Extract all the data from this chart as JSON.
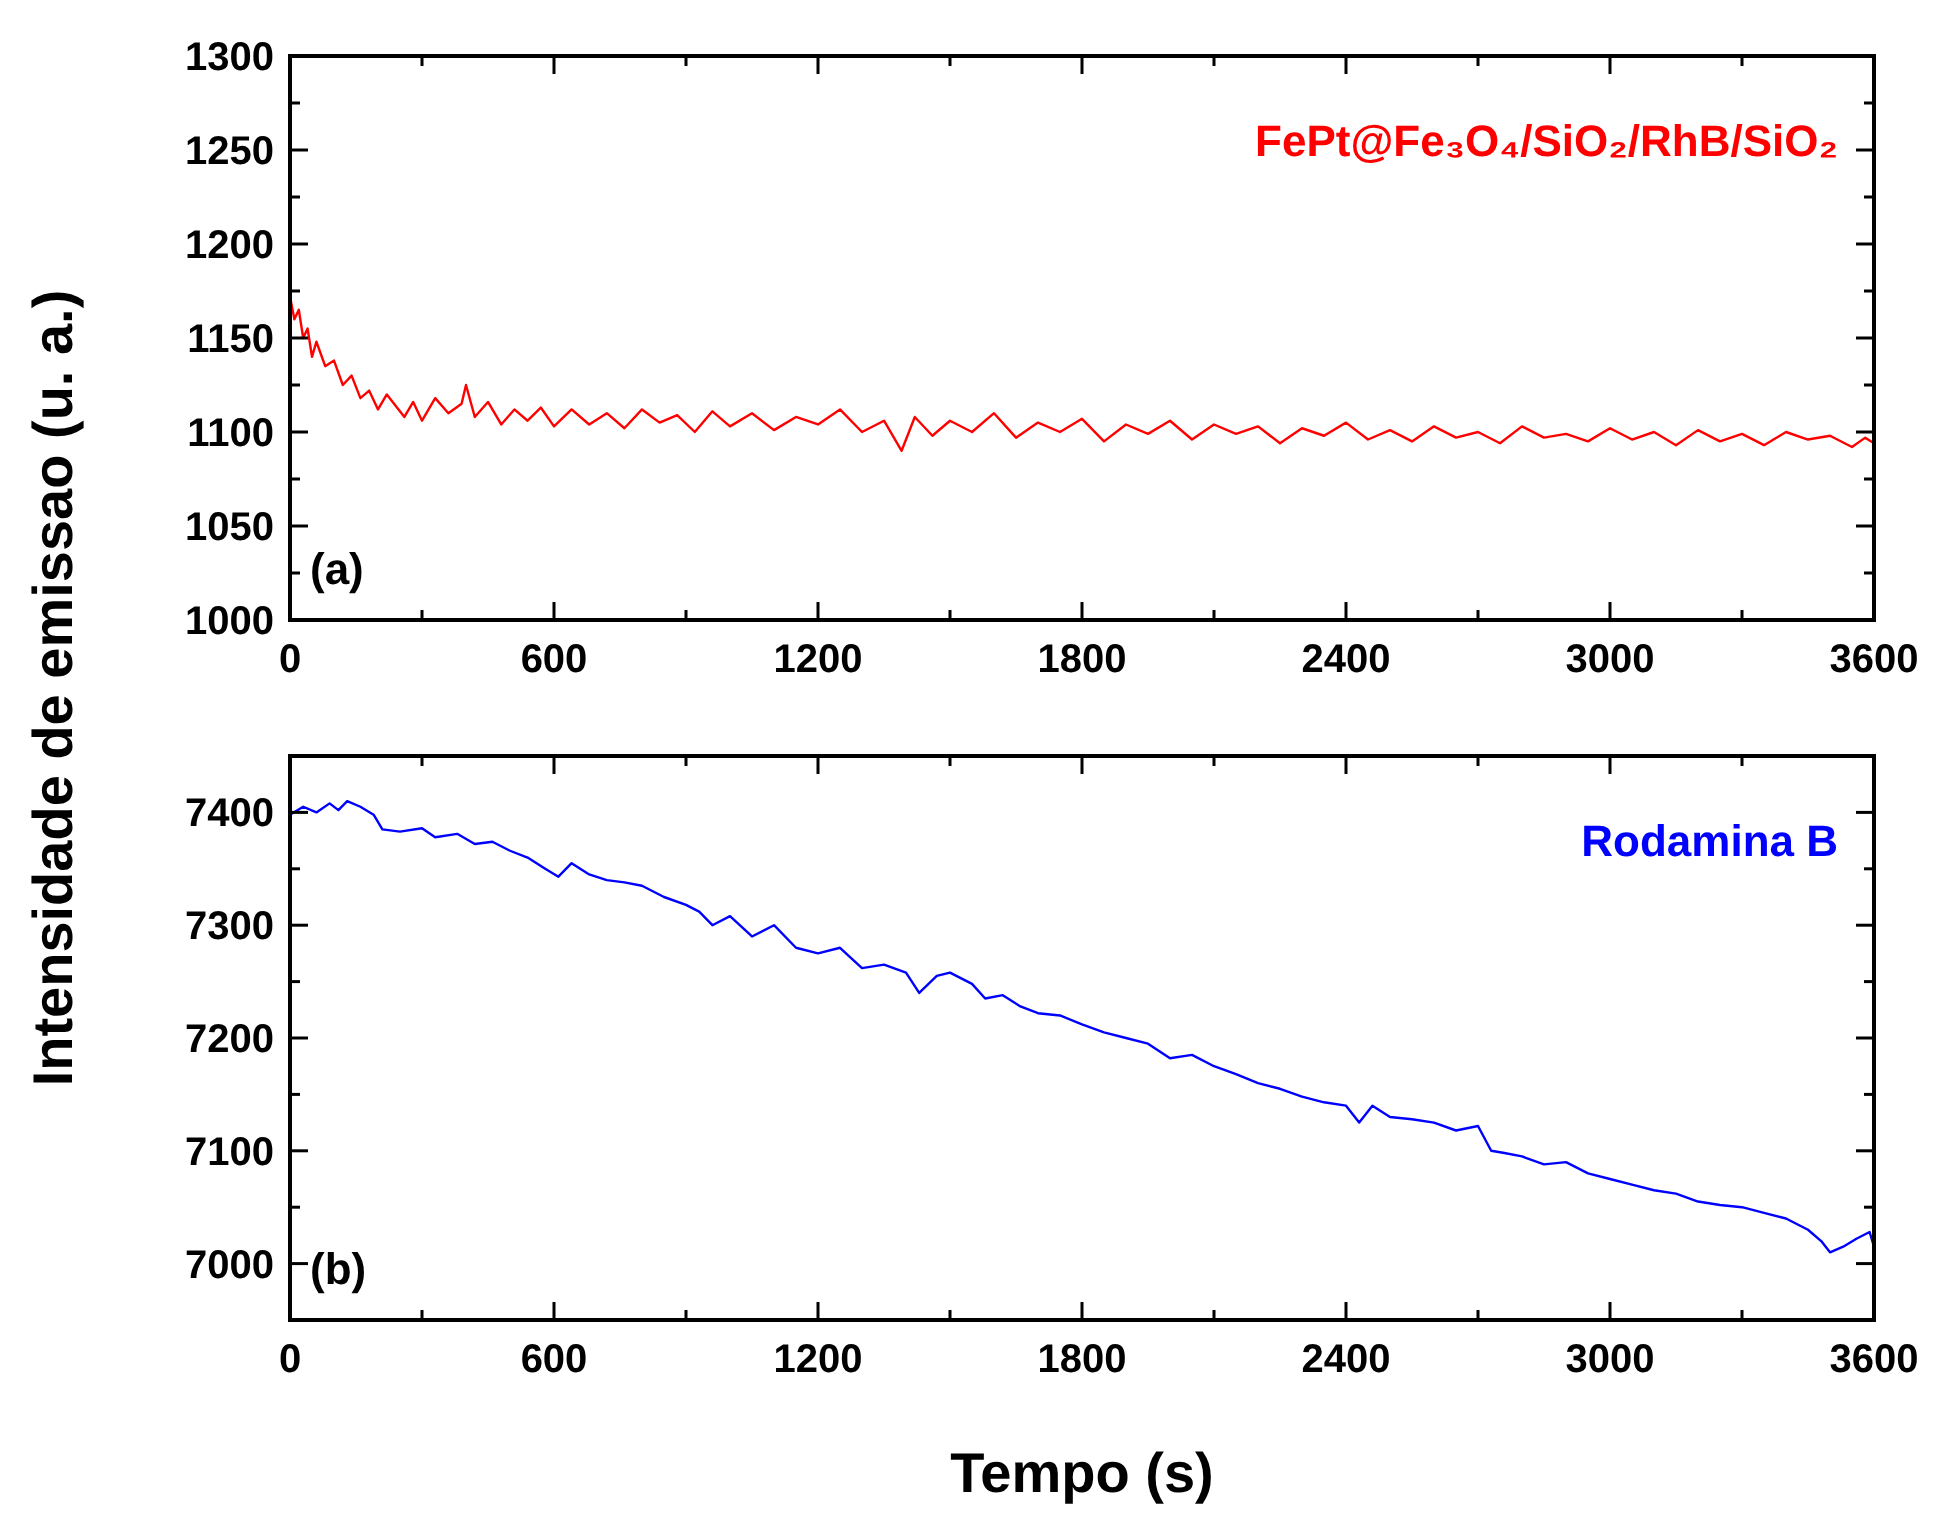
{
  "chart_data": [
    {
      "type": "line",
      "ylabel": "Intensidade de emissao (u. a.)",
      "annotations": [
        "(a)"
      ],
      "legend": "top right",
      "xlim": [
        0,
        3600
      ],
      "ylim": [
        1000,
        1300
      ],
      "xticks": [
        0,
        {
          "value": 300,
          "label": null
        },
        600,
        {
          "value": 900,
          "label": null
        },
        1200,
        {
          "value": 1500,
          "label": null
        },
        1800,
        {
          "value": 2100,
          "label": null
        },
        2400,
        {
          "value": 2700,
          "label": null
        },
        3000,
        {
          "value": 3300,
          "label": null
        },
        3600
      ],
      "yticks": [
        1000,
        {
          "value": 1025,
          "label": null
        },
        1050,
        {
          "value": 1075,
          "label": null
        },
        1100,
        {
          "value": 1125,
          "label": null
        },
        1150,
        {
          "value": 1175,
          "label": null
        },
        1200,
        {
          "value": 1225,
          "label": null
        },
        1250,
        {
          "value": 1275,
          "label": null
        },
        1300
      ],
      "series": [
        {
          "name": "FePt@Fe₃O₄/SiO₂/RhB/SiO₂",
          "color": "#ff0000",
          "x": [
            0,
            10,
            20,
            30,
            40,
            50,
            60,
            80,
            100,
            120,
            140,
            160,
            180,
            200,
            220,
            240,
            260,
            280,
            300,
            330,
            360,
            390,
            400,
            420,
            450,
            480,
            510,
            540,
            570,
            600,
            640,
            680,
            720,
            760,
            800,
            840,
            880,
            920,
            960,
            1000,
            1050,
            1100,
            1150,
            1200,
            1250,
            1300,
            1350,
            1390,
            1420,
            1460,
            1500,
            1550,
            1600,
            1650,
            1700,
            1750,
            1800,
            1850,
            1900,
            1950,
            2000,
            2050,
            2100,
            2150,
            2200,
            2250,
            2300,
            2350,
            2400,
            2450,
            2500,
            2550,
            2600,
            2650,
            2700,
            2750,
            2800,
            2850,
            2900,
            2950,
            3000,
            3050,
            3100,
            3150,
            3200,
            3250,
            3300,
            3350,
            3400,
            3450,
            3500,
            3550,
            3580,
            3600
          ],
          "values": [
            1172,
            1160,
            1165,
            1150,
            1155,
            1140,
            1148,
            1135,
            1138,
            1125,
            1130,
            1118,
            1122,
            1112,
            1120,
            1114,
            1108,
            1116,
            1106,
            1118,
            1110,
            1115,
            1125,
            1108,
            1116,
            1104,
            1112,
            1106,
            1113,
            1103,
            1112,
            1104,
            1110,
            1102,
            1112,
            1105,
            1109,
            1100,
            1111,
            1103,
            1110,
            1101,
            1108,
            1104,
            1112,
            1100,
            1106,
            1090,
            1108,
            1098,
            1106,
            1100,
            1110,
            1097,
            1105,
            1100,
            1107,
            1095,
            1104,
            1099,
            1106,
            1096,
            1104,
            1099,
            1103,
            1094,
            1102,
            1098,
            1105,
            1096,
            1101,
            1095,
            1103,
            1097,
            1100,
            1094,
            1103,
            1097,
            1099,
            1095,
            1102,
            1096,
            1100,
            1093,
            1101,
            1095,
            1099,
            1093,
            1100,
            1096,
            1098,
            1092,
            1097,
            1094
          ]
        }
      ]
    },
    {
      "type": "line",
      "xlabel": "Tempo (s)",
      "annotations": [
        "(b)"
      ],
      "legend": "top right",
      "xlim": [
        0,
        3600
      ],
      "ylim": [
        6950,
        7450
      ],
      "xticks": [
        0,
        {
          "value": 300,
          "label": null
        },
        600,
        {
          "value": 900,
          "label": null
        },
        1200,
        {
          "value": 1500,
          "label": null
        },
        1800,
        {
          "value": 2100,
          "label": null
        },
        2400,
        {
          "value": 2700,
          "label": null
        },
        3000,
        {
          "value": 3300,
          "label": null
        },
        3600
      ],
      "yticks": [
        {
          "value": 6950,
          "label": null
        },
        7000,
        {
          "value": 7050,
          "label": null
        },
        7100,
        {
          "value": 7150,
          "label": null
        },
        7200,
        {
          "value": 7250,
          "label": null
        },
        7300,
        {
          "value": 7350,
          "label": null
        },
        7400,
        {
          "value": 7450,
          "label": null
        }
      ],
      "series": [
        {
          "name": "Rodamina B",
          "color": "#0000ff",
          "x": [
            0,
            30,
            60,
            90,
            110,
            130,
            160,
            190,
            210,
            250,
            300,
            330,
            380,
            420,
            460,
            500,
            540,
            580,
            610,
            640,
            680,
            720,
            760,
            800,
            850,
            900,
            930,
            960,
            1000,
            1050,
            1100,
            1150,
            1200,
            1250,
            1300,
            1350,
            1400,
            1430,
            1470,
            1500,
            1550,
            1580,
            1620,
            1660,
            1700,
            1750,
            1800,
            1850,
            1900,
            1950,
            2000,
            2050,
            2100,
            2150,
            2200,
            2250,
            2300,
            2350,
            2400,
            2430,
            2460,
            2500,
            2550,
            2600,
            2650,
            2700,
            2730,
            2760,
            2800,
            2850,
            2900,
            2950,
            3000,
            3050,
            3100,
            3150,
            3200,
            3250,
            3300,
            3350,
            3400,
            3450,
            3480,
            3500,
            3530,
            3560,
            3590,
            3600
          ],
          "values": [
            7398,
            7405,
            7400,
            7408,
            7402,
            7410,
            7405,
            7398,
            7385,
            7383,
            7386,
            7378,
            7381,
            7372,
            7374,
            7366,
            7360,
            7350,
            7343,
            7355,
            7345,
            7340,
            7338,
            7335,
            7325,
            7318,
            7312,
            7300,
            7308,
            7290,
            7300,
            7280,
            7275,
            7280,
            7262,
            7265,
            7258,
            7240,
            7255,
            7258,
            7248,
            7235,
            7238,
            7228,
            7222,
            7220,
            7212,
            7205,
            7200,
            7195,
            7182,
            7185,
            7175,
            7168,
            7160,
            7155,
            7148,
            7143,
            7140,
            7125,
            7140,
            7130,
            7128,
            7125,
            7118,
            7122,
            7100,
            7098,
            7095,
            7088,
            7090,
            7080,
            7075,
            7070,
            7065,
            7062,
            7055,
            7052,
            7050,
            7045,
            7040,
            7030,
            7020,
            7010,
            7015,
            7022,
            7028,
            7015
          ]
        }
      ]
    }
  ]
}
